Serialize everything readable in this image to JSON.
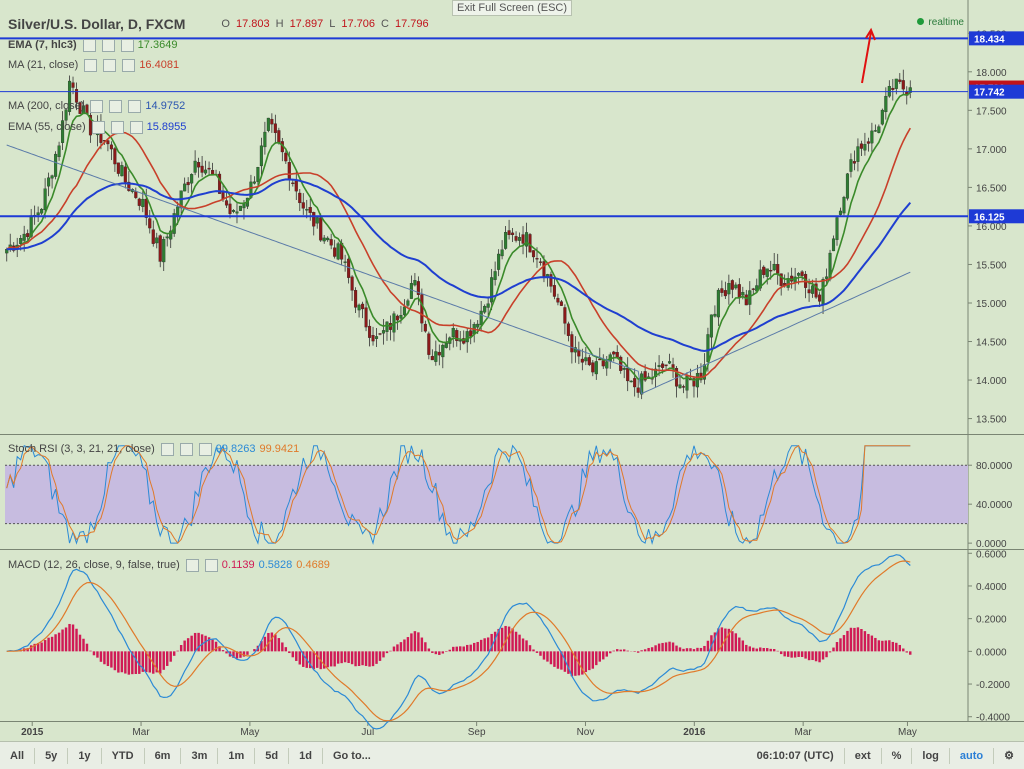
{
  "header": {
    "symbol_title": "Silver/U.S. Dollar, D, FXCM",
    "ohlc": {
      "o_label": "O",
      "o": "17.803",
      "h_label": "H",
      "h": "17.897",
      "l_label": "L",
      "l": "17.706",
      "c_label": "C",
      "c": "17.796"
    },
    "exit_fullscreen": "Exit Full Screen (ESC)",
    "realtime": "realtime"
  },
  "indicators": [
    {
      "label": "EMA (7, hlc3)",
      "value": "17.3649",
      "color": "#3a8a2a"
    },
    {
      "label": "MA (21, close)",
      "value": "16.4081",
      "color": "#c8402a"
    },
    {
      "label": "MA (200, close)",
      "value": "14.9752",
      "color": "#4a6a9a"
    },
    {
      "label": "EMA (55, close)",
      "value": "15.8955",
      "color": "#1f3fd0"
    }
  ],
  "stoch_legend": {
    "label": "Stoch RSI (3, 3, 21, 21, close)",
    "k": "99.8263",
    "d": "99.9421",
    "k_color": "#2b8ad6",
    "d_color": "#e07a2a"
  },
  "macd_legend": {
    "label": "MACD (12, 26, close, 9, false, true)",
    "hist": "0.1139",
    "macd": "0.5828",
    "signal": "0.4689",
    "hist_color": "#d01a55",
    "macd_color": "#2b8ad6",
    "signal_color": "#e07a2a"
  },
  "price_tags": [
    {
      "label": "18.434",
      "value": 18.434,
      "color": "#1e3ad6"
    },
    {
      "label": "17.796",
      "value": 17.796,
      "color": "#c0121a"
    },
    {
      "label": "17.742",
      "value": 17.742,
      "color": "#1e3ad6"
    },
    {
      "label": "16.125",
      "value": 16.125,
      "color": "#1e3ad6"
    }
  ],
  "toolbar": {
    "ranges": [
      "All",
      "5y",
      "1y",
      "YTD",
      "6m",
      "3m",
      "1m",
      "5d",
      "1d"
    ],
    "goto": "Go to...",
    "time": "06:10:07 (UTC)",
    "ext": "ext",
    "pct": "%",
    "log": "log",
    "auto": "auto",
    "settings_icon": "gear-icon"
  },
  "chart_data": [
    {
      "type": "candlestick",
      "title": "Silver/U.S. Dollar, D, FXCM",
      "ylim": [
        13.3,
        18.75
      ],
      "y_ticks": [
        13.5,
        14.0,
        14.5,
        15.0,
        15.5,
        16.0,
        16.5,
        17.0,
        17.5,
        18.0,
        18.5
      ],
      "y_tick_labels": [
        "13.500",
        "14.000",
        "14.500",
        "15.000",
        "15.500",
        "16.000",
        "16.500",
        "17.000",
        "17.500",
        "18.000",
        "18.500"
      ],
      "x_ticks": [
        "2015",
        "Mar",
        "May",
        "Jul",
        "Sep",
        "Nov",
        "2016",
        "Mar",
        "May"
      ],
      "close_path": [
        {
          "t": 0.0,
          "v": 15.7
        },
        {
          "t": 0.02,
          "v": 15.9
        },
        {
          "t": 0.04,
          "v": 16.3
        },
        {
          "t": 0.06,
          "v": 17.2
        },
        {
          "t": 0.07,
          "v": 17.9
        },
        {
          "t": 0.09,
          "v": 17.3
        },
        {
          "t": 0.11,
          "v": 17.1
        },
        {
          "t": 0.13,
          "v": 16.6
        },
        {
          "t": 0.15,
          "v": 16.3
        },
        {
          "t": 0.17,
          "v": 15.6
        },
        {
          "t": 0.19,
          "v": 16.3
        },
        {
          "t": 0.21,
          "v": 16.9
        },
        {
          "t": 0.23,
          "v": 16.6
        },
        {
          "t": 0.25,
          "v": 16.1
        },
        {
          "t": 0.27,
          "v": 16.5
        },
        {
          "t": 0.29,
          "v": 17.3
        },
        {
          "t": 0.31,
          "v": 16.8
        },
        {
          "t": 0.33,
          "v": 16.2
        },
        {
          "t": 0.35,
          "v": 15.9
        },
        {
          "t": 0.37,
          "v": 15.6
        },
        {
          "t": 0.39,
          "v": 14.9
        },
        {
          "t": 0.41,
          "v": 14.5
        },
        {
          "t": 0.43,
          "v": 14.8
        },
        {
          "t": 0.45,
          "v": 15.3
        },
        {
          "t": 0.47,
          "v": 14.3
        },
        {
          "t": 0.49,
          "v": 14.6
        },
        {
          "t": 0.51,
          "v": 14.6
        },
        {
          "t": 0.53,
          "v": 15.0
        },
        {
          "t": 0.55,
          "v": 15.8
        },
        {
          "t": 0.57,
          "v": 15.9
        },
        {
          "t": 0.59,
          "v": 15.6
        },
        {
          "t": 0.61,
          "v": 15.0
        },
        {
          "t": 0.63,
          "v": 14.3
        },
        {
          "t": 0.65,
          "v": 14.1
        },
        {
          "t": 0.67,
          "v": 14.3
        },
        {
          "t": 0.69,
          "v": 13.9
        },
        {
          "t": 0.71,
          "v": 14.0
        },
        {
          "t": 0.73,
          "v": 14.2
        },
        {
          "t": 0.75,
          "v": 13.9
        },
        {
          "t": 0.77,
          "v": 14.1
        },
        {
          "t": 0.78,
          "v": 14.9
        },
        {
          "t": 0.8,
          "v": 15.3
        },
        {
          "t": 0.82,
          "v": 15.0
        },
        {
          "t": 0.84,
          "v": 15.5
        },
        {
          "t": 0.86,
          "v": 15.3
        },
        {
          "t": 0.88,
          "v": 15.4
        },
        {
          "t": 0.9,
          "v": 15.0
        },
        {
          "t": 0.92,
          "v": 16.2
        },
        {
          "t": 0.94,
          "v": 17.0
        },
        {
          "t": 0.96,
          "v": 17.2
        },
        {
          "t": 0.98,
          "v": 17.796
        }
      ],
      "series": [
        {
          "name": "EMA (7, hlc3)",
          "color": "#3a8a2a",
          "kind": "fast"
        },
        {
          "name": "MA (21, close)",
          "color": "#c8402a",
          "kind": "mid"
        },
        {
          "name": "EMA (55, close)",
          "color": "#1f3fd0",
          "kind": "slow"
        },
        {
          "name": "MA (200, close)",
          "color": "#4a6a9a",
          "kind": "ma200"
        }
      ],
      "horizontal_lines": [
        18.434,
        17.742,
        16.125
      ]
    },
    {
      "type": "line",
      "title": "Stoch RSI (3, 3, 21, 21, close)",
      "ylim": [
        -5,
        110
      ],
      "y_tick_labels": [
        "80.0000",
        "40.0000",
        "0.0000"
      ],
      "y_ticks": [
        80,
        40,
        0
      ],
      "band": [
        20,
        80
      ]
    },
    {
      "type": "bar",
      "title": "MACD (12, 26, close, 9, false, true)",
      "ylim": [
        -0.42,
        0.62
      ],
      "y_ticks": [
        0.6,
        0.4,
        0.2,
        0.0,
        -0.2,
        -0.4
      ],
      "y_tick_labels": [
        "0.6000",
        "0.4000",
        "0.2000",
        "0.0000",
        "-0.2000",
        "-0.4000"
      ]
    }
  ]
}
